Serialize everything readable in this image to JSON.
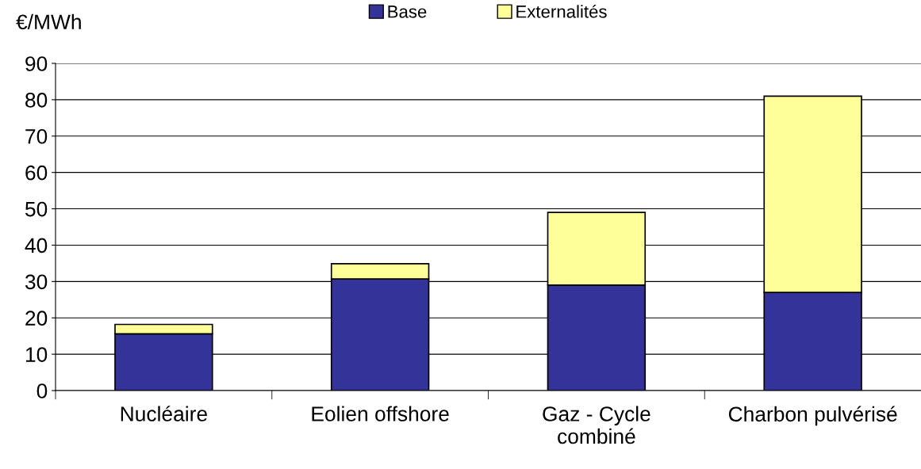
{
  "chart_data": {
    "type": "bar",
    "stacked": true,
    "ylabel": "€/MWh",
    "categories": [
      "Nucléaire",
      "Eolien offshore",
      "Gaz - Cycle\ncombiné",
      "Charbon pulvérisé"
    ],
    "series": [
      {
        "name": "Base",
        "color": "#333399",
        "values": [
          15.6,
          30.7,
          29,
          27
        ]
      },
      {
        "name": "Externalités",
        "color": "#ffff99",
        "values": [
          2.6,
          4.2,
          20,
          54
        ]
      }
    ],
    "ylim": [
      0,
      90
    ],
    "yticks": [
      0,
      10,
      20,
      30,
      40,
      50,
      60,
      70,
      80,
      90
    ],
    "grid": "y",
    "legend": "top"
  }
}
